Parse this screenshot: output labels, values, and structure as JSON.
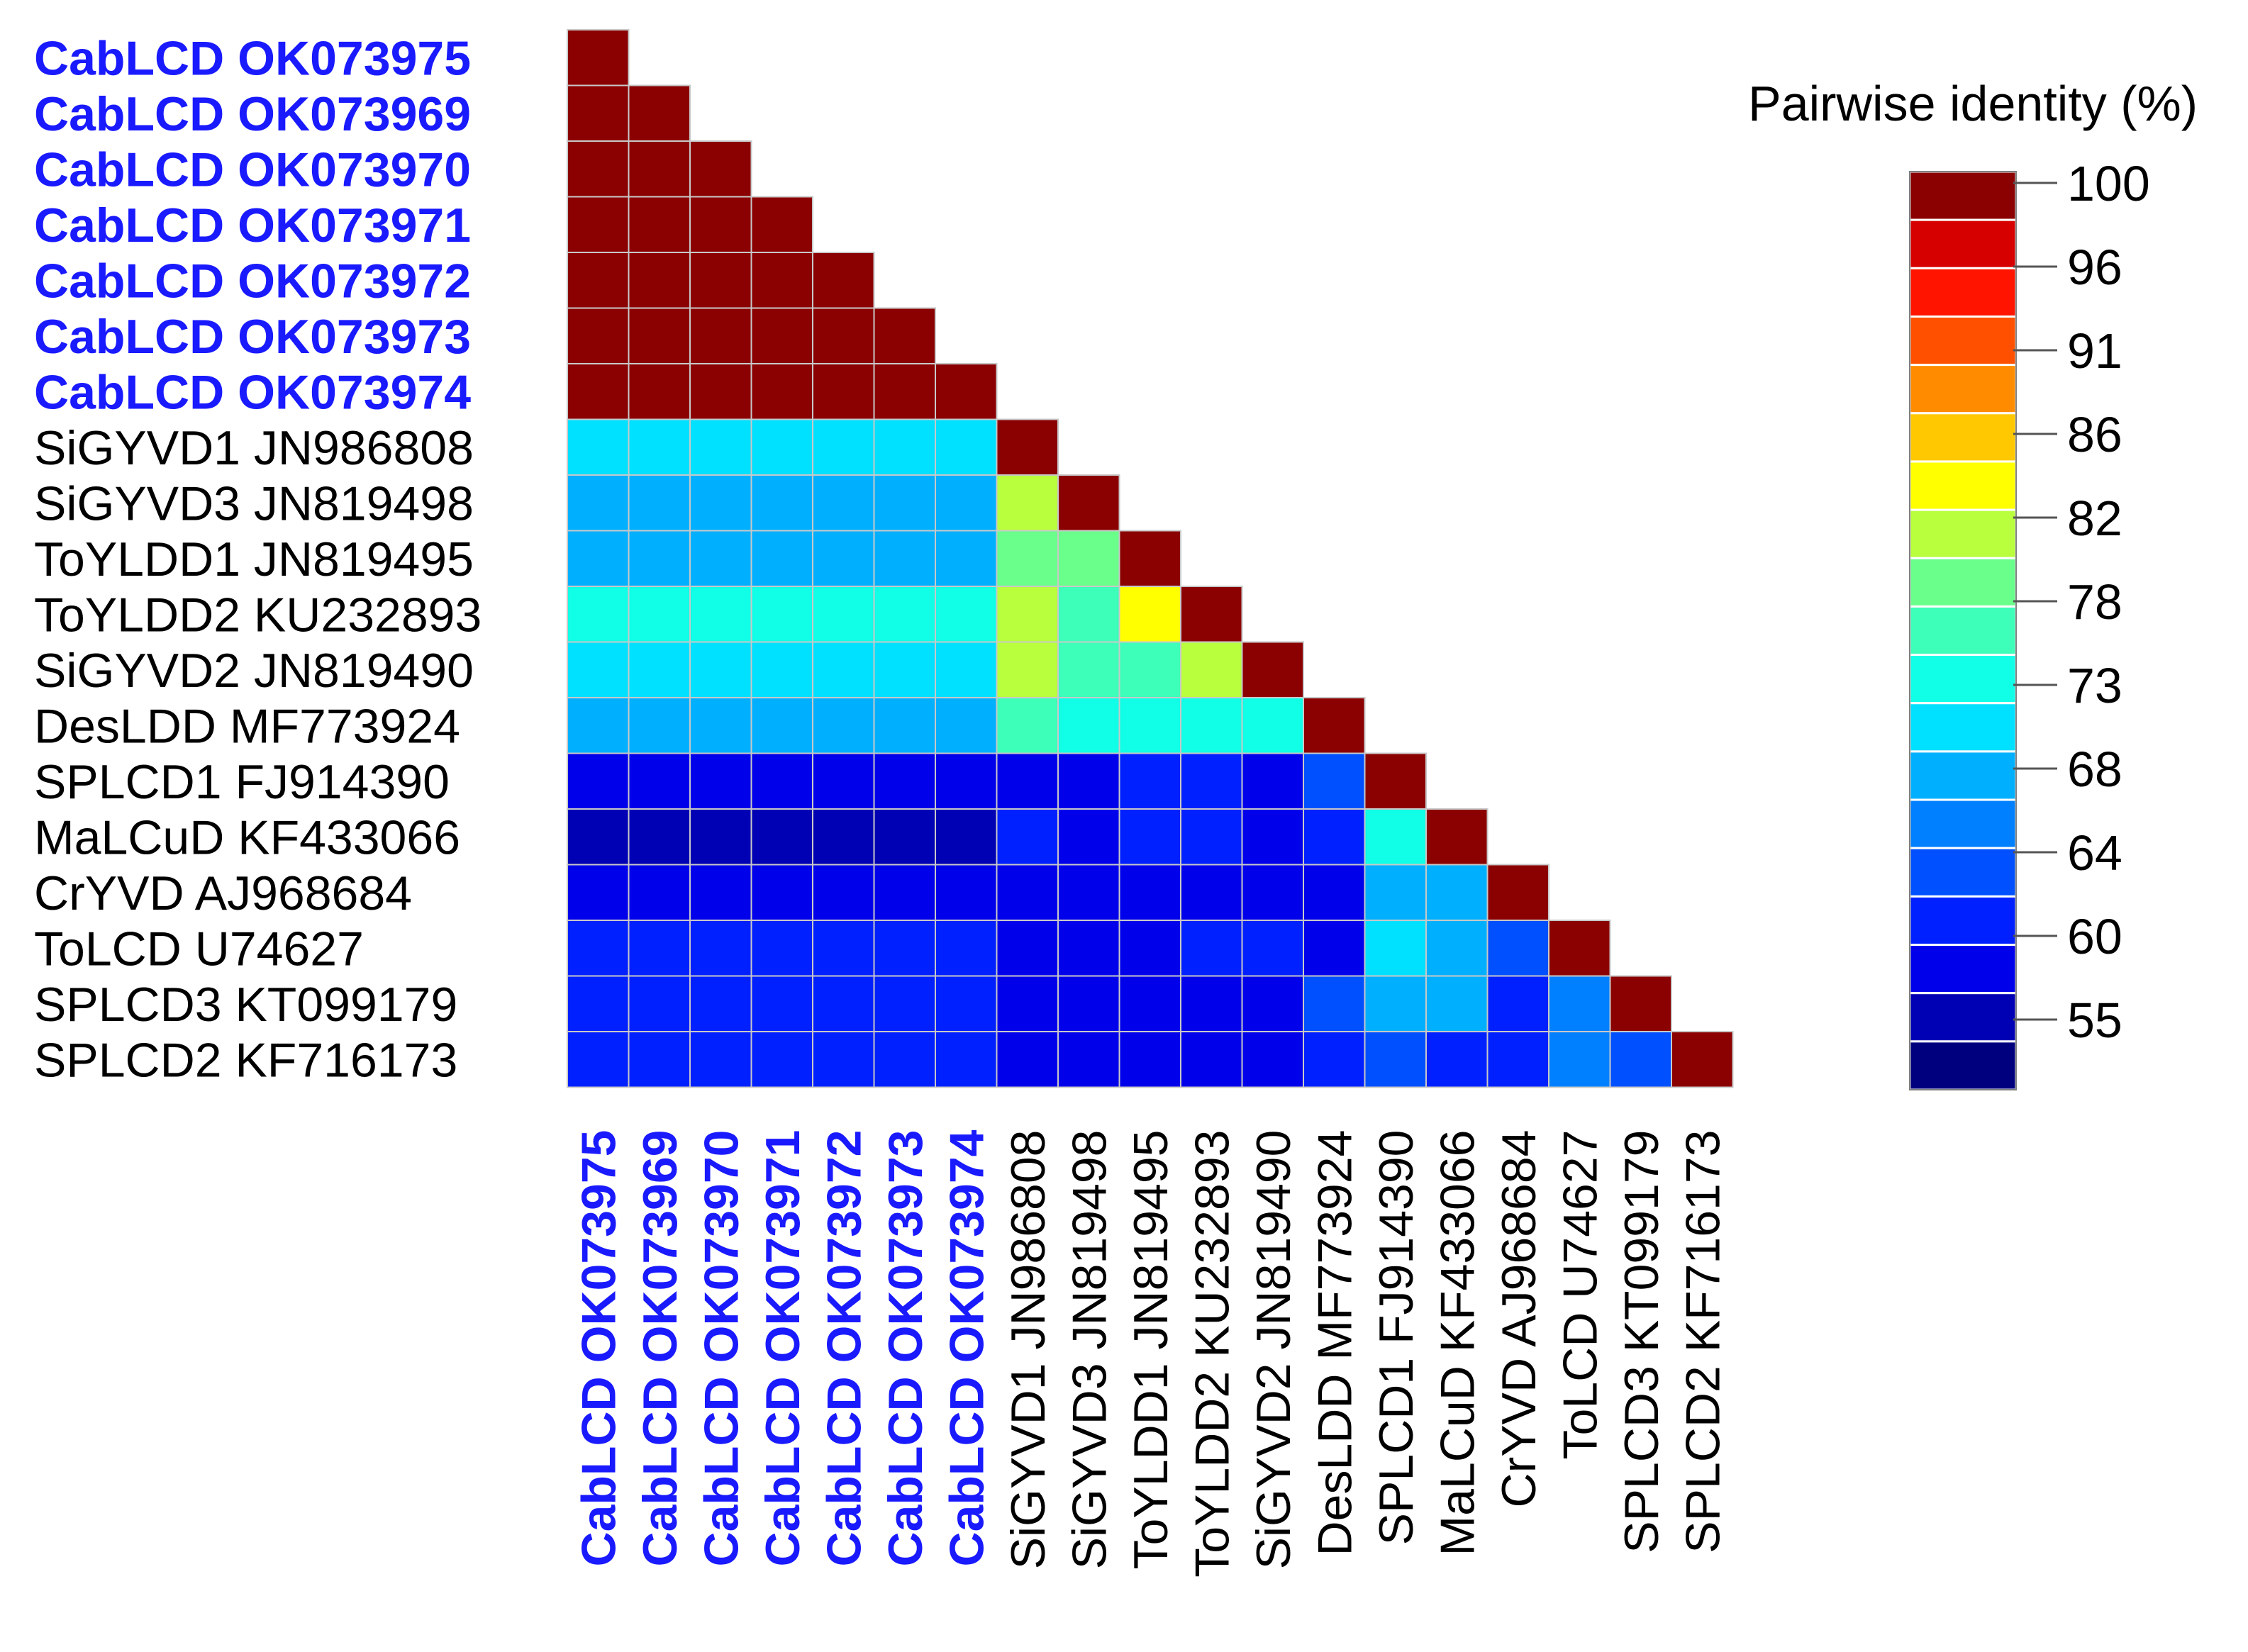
{
  "chart_data": {
    "type": "heatmap",
    "title": "",
    "legend_title": "Pairwise identity (%)",
    "legend_ticks": [
      100,
      96,
      91,
      86,
      82,
      78,
      73,
      68,
      64,
      60,
      55
    ],
    "color_min": 52,
    "color_max": 100,
    "highlight_color": "#1a1aff",
    "label_color": "#000000",
    "grid_color": "#c8c8c8",
    "colormap": [
      "#00007f",
      "#0000b4",
      "#0000ea",
      "#0020ff",
      "#0050ff",
      "#0080ff",
      "#00b0ff",
      "#00e0ff",
      "#10ffe6",
      "#3dffb9",
      "#6aff8b",
      "#b9ff3d",
      "#ffff00",
      "#ffc800",
      "#ff8c00",
      "#ff5000",
      "#ff1400",
      "#d70000",
      "#8b0000"
    ],
    "labels": [
      "CabLCD OK073975",
      "CabLCD OK073969",
      "CabLCD OK073970",
      "CabLCD OK073971",
      "CabLCD OK073972",
      "CabLCD OK073973",
      "CabLCD OK073974",
      "SiGYVD1 JN986808",
      "SiGYVD3 JN819498",
      "ToYLDD1 JN819495",
      "ToYLDD2 KU232893",
      "SiGYVD2 JN819490",
      "DesLDD MF773924",
      "SPLCD1 FJ914390",
      "MaLCuD KF433066",
      "CrYVD AJ968684",
      "ToLCD U74627",
      "SPLCD3 KT099179",
      "SPLCD2 KF716173"
    ],
    "highlighted": [
      true,
      true,
      true,
      true,
      true,
      true,
      true,
      false,
      false,
      false,
      false,
      false,
      false,
      false,
      false,
      false,
      false,
      false,
      false
    ],
    "matrix": [
      [
        100
      ],
      [
        100,
        100
      ],
      [
        100,
        100,
        100
      ],
      [
        100,
        100,
        100,
        100
      ],
      [
        100,
        100,
        100,
        100,
        100
      ],
      [
        100,
        100,
        100,
        100,
        100,
        100
      ],
      [
        100,
        100,
        100,
        100,
        100,
        100,
        100
      ],
      [
        70,
        70,
        70,
        70,
        70,
        70,
        70,
        100
      ],
      [
        68,
        68,
        68,
        68,
        68,
        68,
        68,
        80,
        100
      ],
      [
        69,
        69,
        69,
        69,
        69,
        69,
        69,
        79,
        78,
        100
      ],
      [
        73,
        73,
        73,
        73,
        73,
        73,
        73,
        80,
        76,
        84,
        100
      ],
      [
        71,
        71,
        71,
        71,
        71,
        71,
        71,
        81,
        75,
        76,
        80,
        100
      ],
      [
        68,
        67,
        67,
        67,
        67,
        67,
        67,
        77,
        74,
        72,
        74,
        74,
        100
      ],
      [
        58,
        58,
        58,
        58,
        58,
        58,
        58,
        58,
        58,
        61,
        60,
        57,
        62,
        100
      ],
      [
        54,
        54,
        54,
        54,
        55,
        55,
        55,
        61,
        56,
        60,
        59,
        58,
        59,
        73,
        100
      ],
      [
        56,
        57,
        57,
        57,
        57,
        57,
        57,
        58,
        58,
        58,
        58,
        57,
        58,
        67,
        68,
        100
      ],
      [
        59,
        59,
        59,
        59,
        59,
        59,
        59,
        57,
        57,
        56,
        61,
        59,
        57,
        70,
        67,
        63,
        100
      ],
      [
        59,
        59,
        59,
        59,
        59,
        59,
        59,
        58,
        58,
        58,
        58,
        57,
        63,
        67,
        67,
        59,
        65,
        100
      ],
      [
        59,
        59,
        59,
        59,
        59,
        59,
        59,
        56,
        57,
        58,
        58,
        56,
        61,
        62,
        61,
        59,
        66,
        63,
        100
      ]
    ]
  }
}
